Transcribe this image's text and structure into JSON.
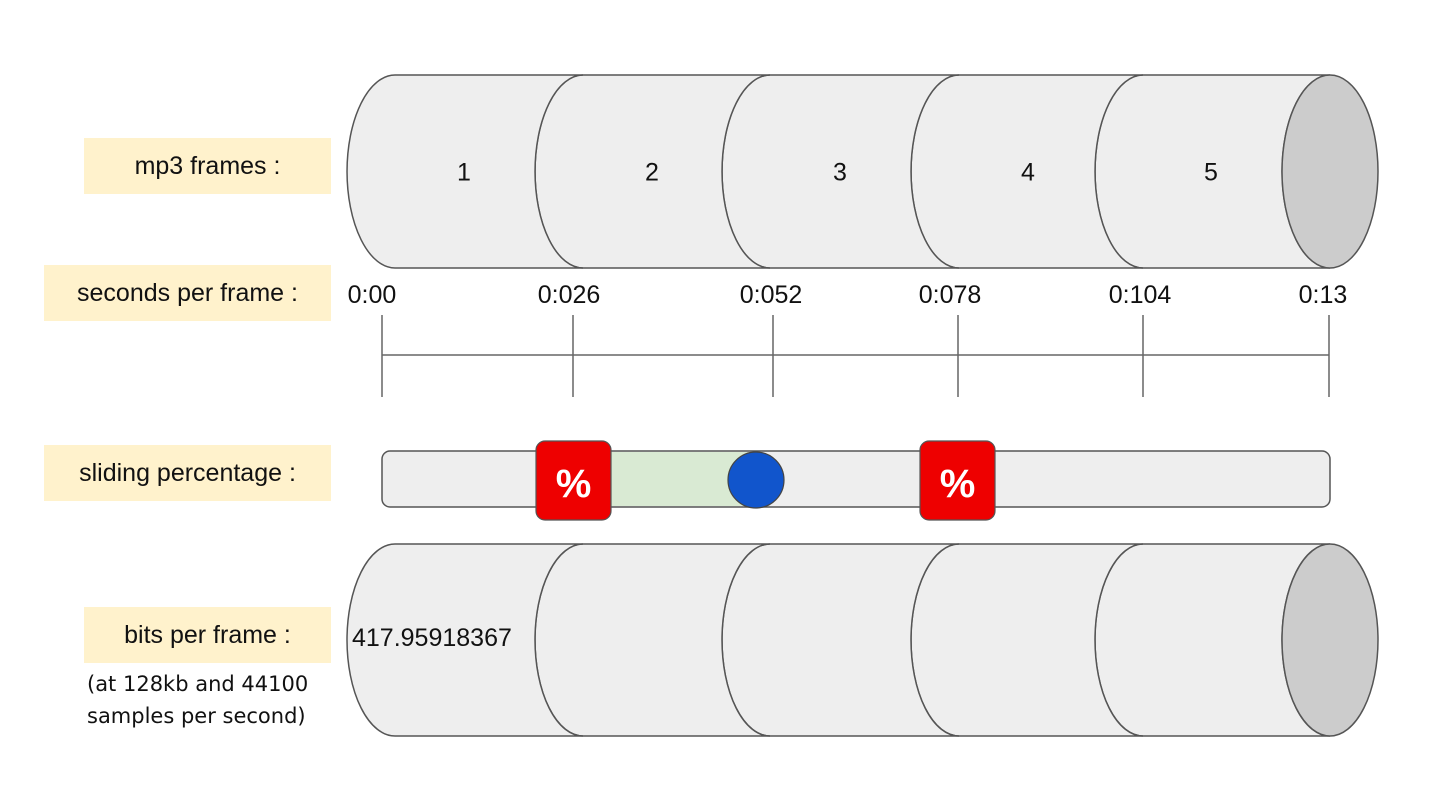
{
  "labels": {
    "frames": "mp3 frames :",
    "seconds": "seconds per frame :",
    "sliding": "sliding percentage :",
    "bits": "bits per frame :",
    "bits_note_line1": "(at 128kb and 44100",
    "bits_note_line2": "samples per second)"
  },
  "frames": [
    "1",
    "2",
    "3",
    "4",
    "5"
  ],
  "timeline": {
    "ticks": [
      "0:00",
      "0:026",
      "0:052",
      "0:078",
      "0:104",
      "0:13"
    ]
  },
  "slider": {
    "badge_text": "%",
    "fill_color": "#d9ead3",
    "knob_color": "#1155cc",
    "badge_color": "#ee0000"
  },
  "bits": {
    "first_frame_value": "417.95918367"
  }
}
